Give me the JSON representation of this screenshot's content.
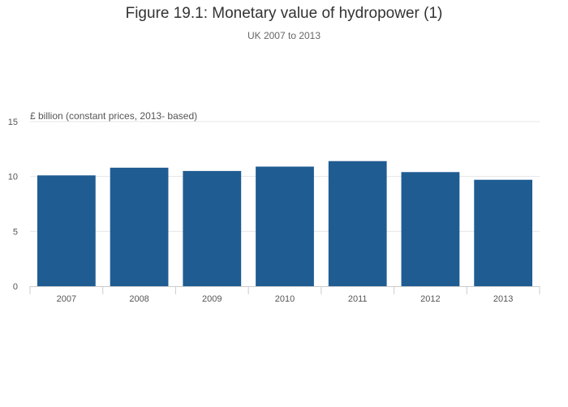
{
  "chart_data": {
    "type": "bar",
    "title": "Figure 19.1: Monetary value of hydropower (1)",
    "subtitle": "UK 2007 to 2013",
    "ylabel": "£ billion (constant prices, 2013- based)",
    "xlabel": "",
    "categories": [
      "2007",
      "2008",
      "2009",
      "2010",
      "2011",
      "2012",
      "2013"
    ],
    "values": [
      10.1,
      10.8,
      10.5,
      10.9,
      11.4,
      10.4,
      9.7
    ],
    "ylim": [
      0,
      15
    ],
    "yticks": [
      "0",
      "5",
      "10",
      "15"
    ],
    "grid": true,
    "legend": "none",
    "bar_color": "#1f5c92"
  }
}
